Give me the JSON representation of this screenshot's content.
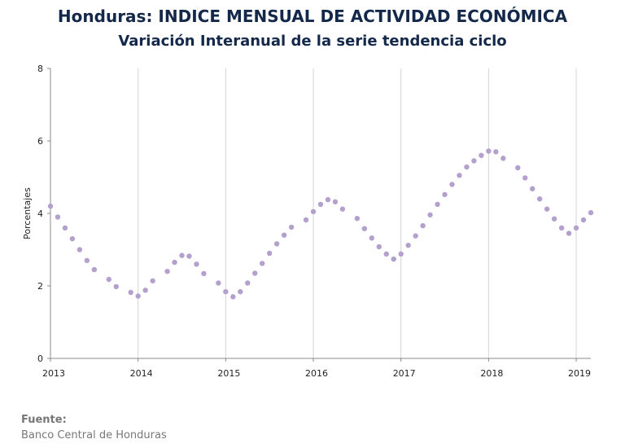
{
  "header": {
    "title": "Honduras: INDICE MENSUAL DE ACTIVIDAD ECONÓMICA",
    "subtitle": "Variación Interanual de la serie tendencia ciclo"
  },
  "source": {
    "label": "Fuente:",
    "value": "Banco Central de Honduras"
  },
  "chart_data": {
    "type": "scatter",
    "ylabel": "Porcentajes",
    "xlabel": "",
    "ylim": [
      0,
      8
    ],
    "yticks": [
      "0",
      "2",
      "4",
      "6",
      "8"
    ],
    "xlim": [
      "2013-01",
      "2019-03"
    ],
    "xticks": [
      "2013",
      "2014",
      "2015",
      "2016",
      "2017",
      "2018",
      "2019"
    ],
    "grid": "vertical-at-years",
    "marker_color": "#b3a0cc",
    "series": [
      {
        "x": [
          "2013-01",
          "2013-02",
          "2013-03",
          "2013-04",
          "2013-05",
          "2013-06",
          "2013-07",
          "2013-09",
          "2013-10",
          "2013-12",
          "2014-01",
          "2014-02",
          "2014-03",
          "2014-05",
          "2014-06",
          "2014-07",
          "2014-08",
          "2014-09",
          "2014-10",
          "2014-12",
          "2015-01",
          "2015-02",
          "2015-03",
          "2015-04",
          "2015-05",
          "2015-06",
          "2015-07",
          "2015-08",
          "2015-09",
          "2015-10",
          "2015-12",
          "2016-01",
          "2016-02",
          "2016-03",
          "2016-04",
          "2016-05",
          "2016-07",
          "2016-08",
          "2016-09",
          "2016-10",
          "2016-11",
          "2016-12",
          "2017-01",
          "2017-02",
          "2017-03",
          "2017-04",
          "2017-05",
          "2017-06",
          "2017-07",
          "2017-08",
          "2017-09",
          "2017-10",
          "2017-11",
          "2017-12",
          "2018-01",
          "2018-02",
          "2018-03",
          "2018-05",
          "2018-06",
          "2018-07",
          "2018-08",
          "2018-09",
          "2018-10",
          "2018-11",
          "2018-12",
          "2019-01",
          "2019-02",
          "2019-03"
        ],
        "y": [
          4.2,
          3.9,
          3.6,
          3.3,
          3.0,
          2.7,
          2.45,
          2.18,
          1.98,
          1.82,
          1.72,
          1.88,
          2.14,
          2.4,
          2.65,
          2.84,
          2.82,
          2.6,
          2.34,
          2.08,
          1.84,
          1.7,
          1.84,
          2.08,
          2.35,
          2.62,
          2.9,
          3.16,
          3.4,
          3.62,
          3.82,
          4.05,
          4.25,
          4.38,
          4.32,
          4.12,
          3.86,
          3.58,
          3.32,
          3.08,
          2.88,
          2.74,
          2.88,
          3.12,
          3.38,
          3.66,
          3.96,
          4.25,
          4.52,
          4.8,
          5.05,
          5.28,
          5.45,
          5.6,
          5.72,
          5.7,
          5.52,
          5.26,
          4.98,
          4.68,
          4.4,
          4.12,
          3.85,
          3.6,
          3.45,
          3.6,
          3.82,
          4.02
        ]
      }
    ]
  }
}
